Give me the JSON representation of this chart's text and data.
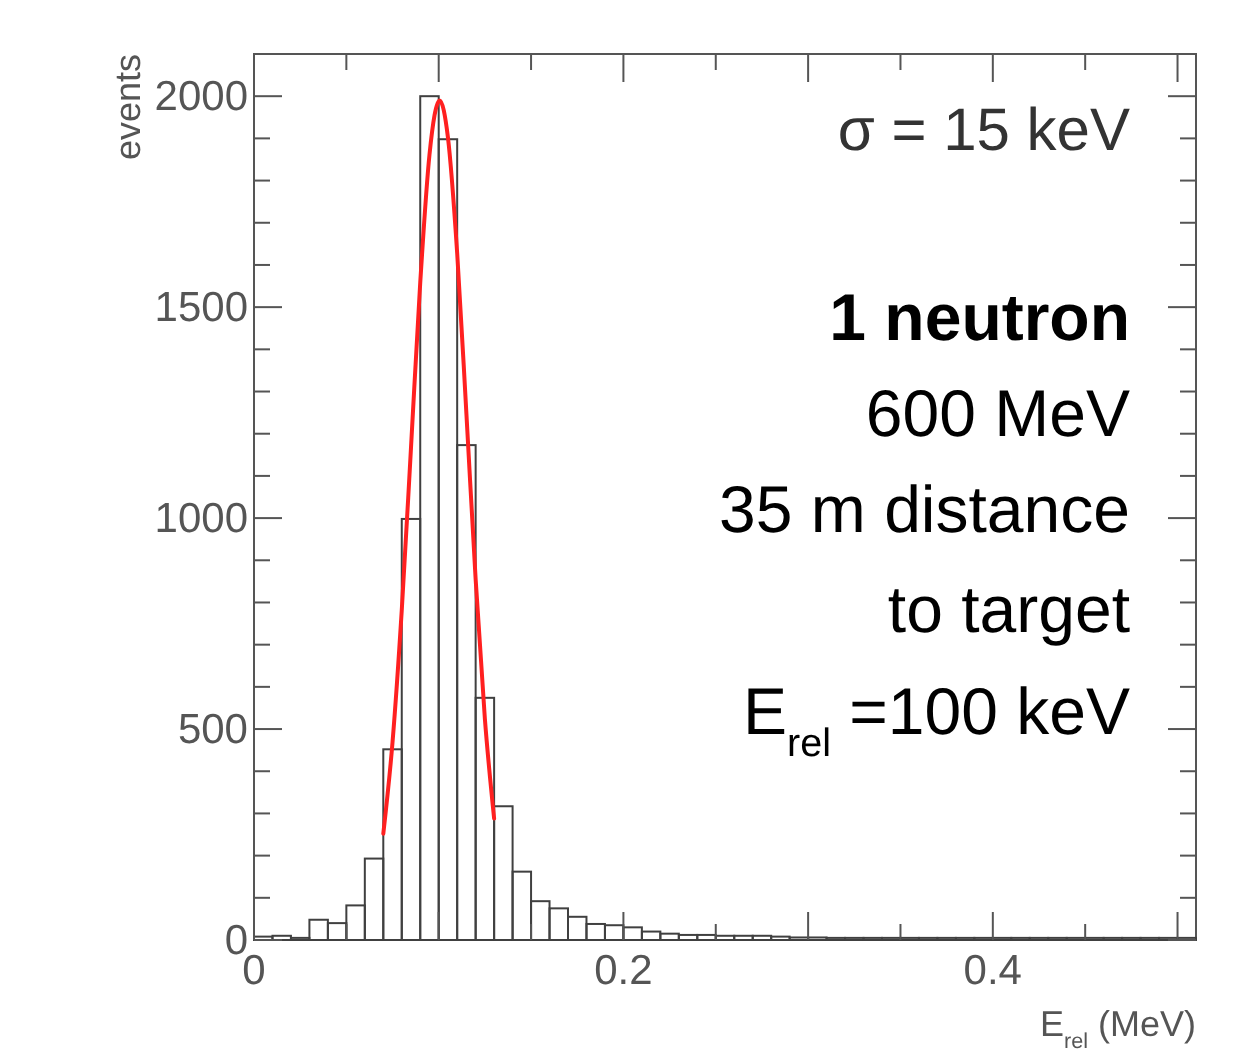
{
  "chart_data": {
    "type": "histogram",
    "xlabel": "E$_{rel}$ (MeV)",
    "ylabel": "events",
    "bins": [
      0,
      0.01,
      0.02,
      0.03,
      0.04,
      0.05,
      0.06,
      0.07,
      0.08,
      0.09,
      0.1,
      0.11,
      0.12,
      0.13,
      0.14,
      0.15,
      0.16,
      0.17,
      0.18,
      0.19,
      0.2,
      0.21,
      0.22,
      0.23,
      0.24,
      0.25,
      0.26,
      0.27,
      0.28,
      0.29,
      0.3,
      0.31,
      0.32,
      0.33,
      0.34,
      0.35,
      0.36,
      0.37,
      0.38,
      0.39,
      0.4,
      0.41,
      0.42,
      0.43,
      0.44,
      0.45,
      0.46,
      0.47,
      0.48,
      0.49,
      0.5,
      0.51
    ],
    "series": [
      {
        "color": "#404040",
        "values": [
          8,
          10,
          5,
          48,
          40,
          82,
          193,
          452,
          998,
          2000,
          1898,
          1173,
          574,
          317,
          162,
          92,
          75,
          55,
          38,
          35,
          30,
          20,
          15,
          12,
          12,
          10,
          10,
          10,
          8,
          6,
          6,
          5,
          5,
          5,
          5,
          5,
          5,
          5,
          5,
          5,
          5,
          5,
          5,
          5,
          5,
          5,
          5,
          5,
          5,
          5,
          5
        ]
      },
      {
        "type": "line",
        "color": "#ff2020",
        "x": [
          0.07,
          0.075,
          0.08,
          0.085,
          0.09,
          0.095,
          0.1005,
          0.105,
          0.11,
          0.115,
          0.12,
          0.125,
          0.13
        ],
        "values": [
          252,
          469,
          782,
          1167,
          1558,
          1861,
          1990,
          1902,
          1628,
          1247,
          855,
          524,
          288
        ]
      }
    ],
    "xlim": [
      0,
      0.51
    ],
    "ylim": [
      0,
      2100
    ],
    "xticks": [
      0,
      {
        "value": 0.05,
        "label": null
      },
      {
        "value": 0.1,
        "label": null
      },
      {
        "value": 0.15,
        "label": null
      },
      0.2,
      {
        "value": 0.25,
        "label": null
      },
      {
        "value": 0.3,
        "label": null
      },
      {
        "value": 0.35,
        "label": null
      },
      0.4,
      {
        "value": 0.45,
        "label": null
      },
      {
        "value": 0.5,
        "label": null
      }
    ],
    "yticks": [
      0,
      {
        "value": 100,
        "label": null
      },
      {
        "value": 200,
        "label": null
      },
      {
        "value": 300,
        "label": null
      },
      {
        "value": 400,
        "label": null
      },
      500,
      {
        "value": 600,
        "label": null
      },
      {
        "value": 700,
        "label": null
      },
      {
        "value": 800,
        "label": null
      },
      {
        "value": 900,
        "label": null
      },
      1000,
      {
        "value": 1100,
        "label": null
      },
      {
        "value": 1200,
        "label": null
      },
      {
        "value": 1300,
        "label": null
      },
      {
        "value": 1400,
        "label": null
      },
      1500,
      {
        "value": 1600,
        "label": null
      },
      {
        "value": 1700,
        "label": null
      },
      {
        "value": 1800,
        "label": null
      },
      {
        "value": 1900,
        "label": null
      },
      2000
    ],
    "annotations": [
      "σ = 15 keV",
      "1 neutron",
      "600 MeV",
      "35 m distance",
      "to target",
      "E$_{rel}$ =100 keV"
    ],
    "grid": false
  }
}
